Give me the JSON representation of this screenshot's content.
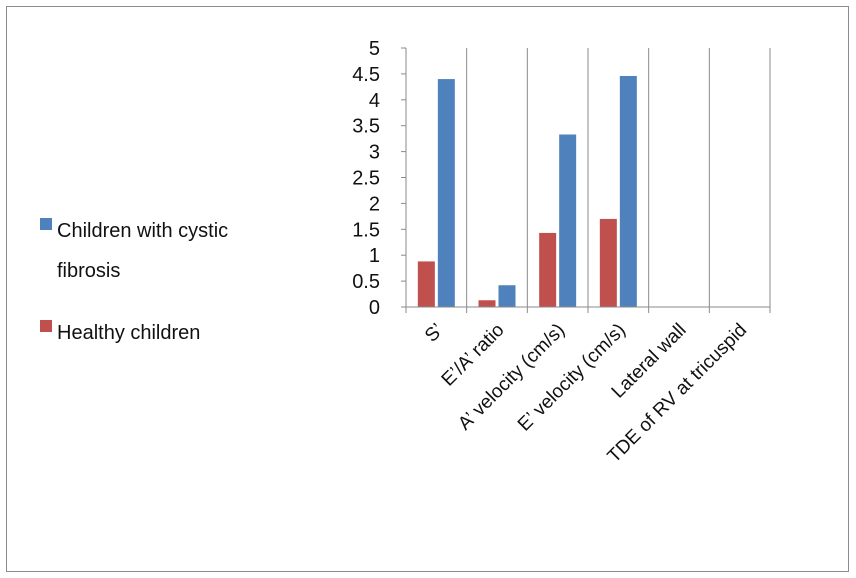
{
  "chart_data": {
    "type": "bar",
    "title": "",
    "xlabel": "",
    "ylabel": "",
    "categories": [
      "S’",
      "E’/A’ ratio",
      "A’ velocity (cm/s)",
      "E’ velocity (cm/s)",
      "Lateral wall",
      "TDE of RV at tricuspid"
    ],
    "series": [
      {
        "name": "Healthy children",
        "color": "#C0504D",
        "values": [
          0.88,
          0.13,
          1.43,
          1.7,
          null,
          null
        ]
      },
      {
        "name": "Children with cystic fibrosis",
        "color": "#4F81BD",
        "values": [
          4.4,
          0.42,
          3.33,
          4.46,
          null,
          null
        ]
      }
    ],
    "ylim": [
      0,
      5
    ],
    "yticks": [
      "0",
      "0.5",
      "1",
      "1.5",
      "2",
      "2.5",
      "3",
      "3.5",
      "4",
      "4.5",
      "5"
    ],
    "legend": {
      "position": "left",
      "entries": [
        {
          "lines": [
            "Children with cystic",
            "fibrosis"
          ],
          "color": "#4F81BD"
        },
        {
          "lines": [
            "Healthy children"
          ],
          "color": "#C0504D"
        }
      ]
    },
    "grid": true
  }
}
